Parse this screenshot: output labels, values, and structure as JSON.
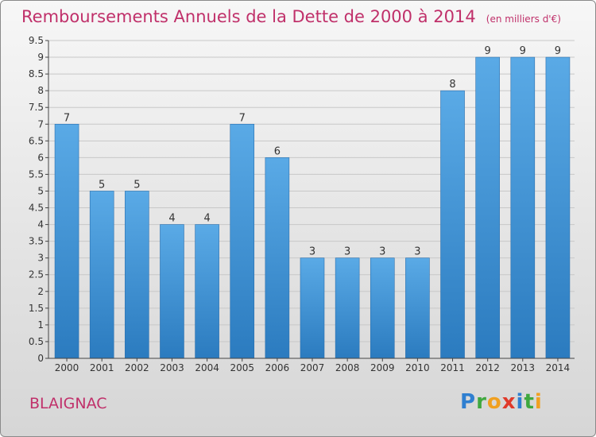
{
  "header": {
    "title": "Remboursements Annuels de la Dette de 2000 à 2014",
    "unit": "(en milliers d'€)"
  },
  "footer": {
    "commune": "BLAIGNAC",
    "logo_letters": [
      {
        "ch": "P",
        "color": "#2f7fd0"
      },
      {
        "ch": "r",
        "color": "#3fa83f"
      },
      {
        "ch": "o",
        "color": "#f0a020"
      },
      {
        "ch": "x",
        "color": "#e03a2a"
      },
      {
        "ch": "i",
        "color": "#2f7fd0"
      },
      {
        "ch": "t",
        "color": "#3fa83f"
      },
      {
        "ch": "i",
        "color": "#f0a020"
      }
    ]
  },
  "colors": {
    "bar_light": "#5aaae6",
    "bar_dark": "#2b7bbf",
    "grid": "#c8c8c8",
    "axis": "#444444"
  },
  "chart_data": {
    "type": "bar",
    "categories": [
      "2000",
      "2001",
      "2002",
      "2003",
      "2004",
      "2005",
      "2006",
      "2007",
      "2008",
      "2009",
      "2010",
      "2011",
      "2012",
      "2013",
      "2014"
    ],
    "values": [
      7,
      5,
      5,
      4,
      4,
      7,
      6,
      3,
      3,
      3,
      3,
      8,
      9,
      9,
      9
    ],
    "value_labels": [
      "7",
      "5",
      "5",
      "4",
      "4",
      "7",
      "6",
      "3",
      "3",
      "3",
      "3",
      "8",
      "9",
      "9",
      "9"
    ],
    "yticks": [
      "0",
      "0.5",
      "1",
      "1.5",
      "2",
      "2.5",
      "3",
      "3.5",
      "4",
      "4.5",
      "5",
      "5.5",
      "6",
      "6.5",
      "7",
      "7.5",
      "8",
      "8.5",
      "9",
      "9.5"
    ],
    "ylim": [
      0,
      9.5
    ],
    "grid": true
  }
}
